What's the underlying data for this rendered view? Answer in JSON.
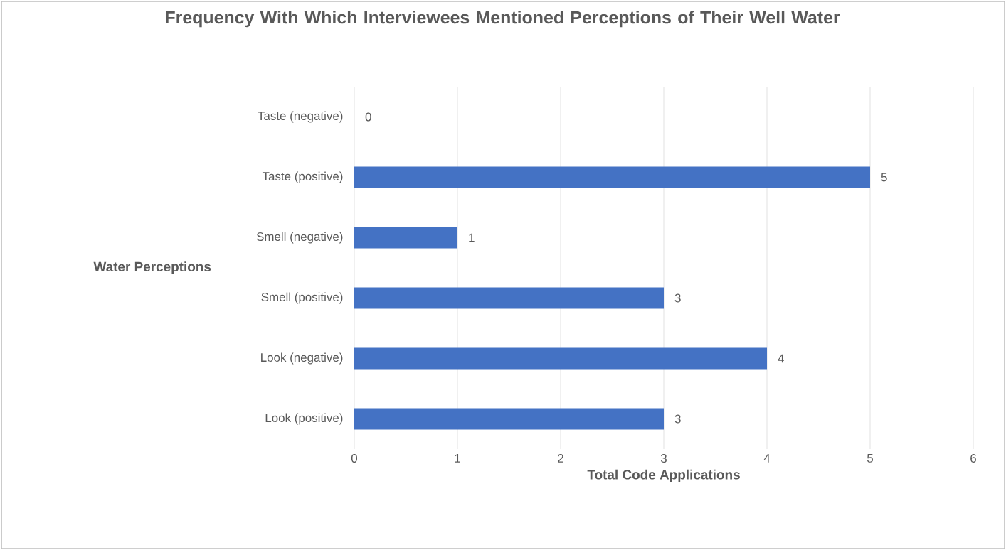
{
  "chart_data": {
    "type": "bar",
    "orientation": "horizontal",
    "title": "Frequency With Which Interviewees Mentioned Perceptions of Their Well Water",
    "xlabel": "Total Code Applications",
    "ylabel": "Water Perceptions",
    "categories": [
      "Taste (negative)",
      "Taste (positive)",
      "Smell (negative)",
      "Smell (positive)",
      "Look (negative)",
      "Look (positive)"
    ],
    "values": [
      0,
      5,
      1,
      3,
      4,
      3
    ],
    "color": "#4472c4",
    "xlim": [
      0,
      6
    ],
    "xticks": [
      0,
      1,
      2,
      3,
      4,
      5,
      6
    ],
    "grid": "x",
    "data_labels": true
  }
}
